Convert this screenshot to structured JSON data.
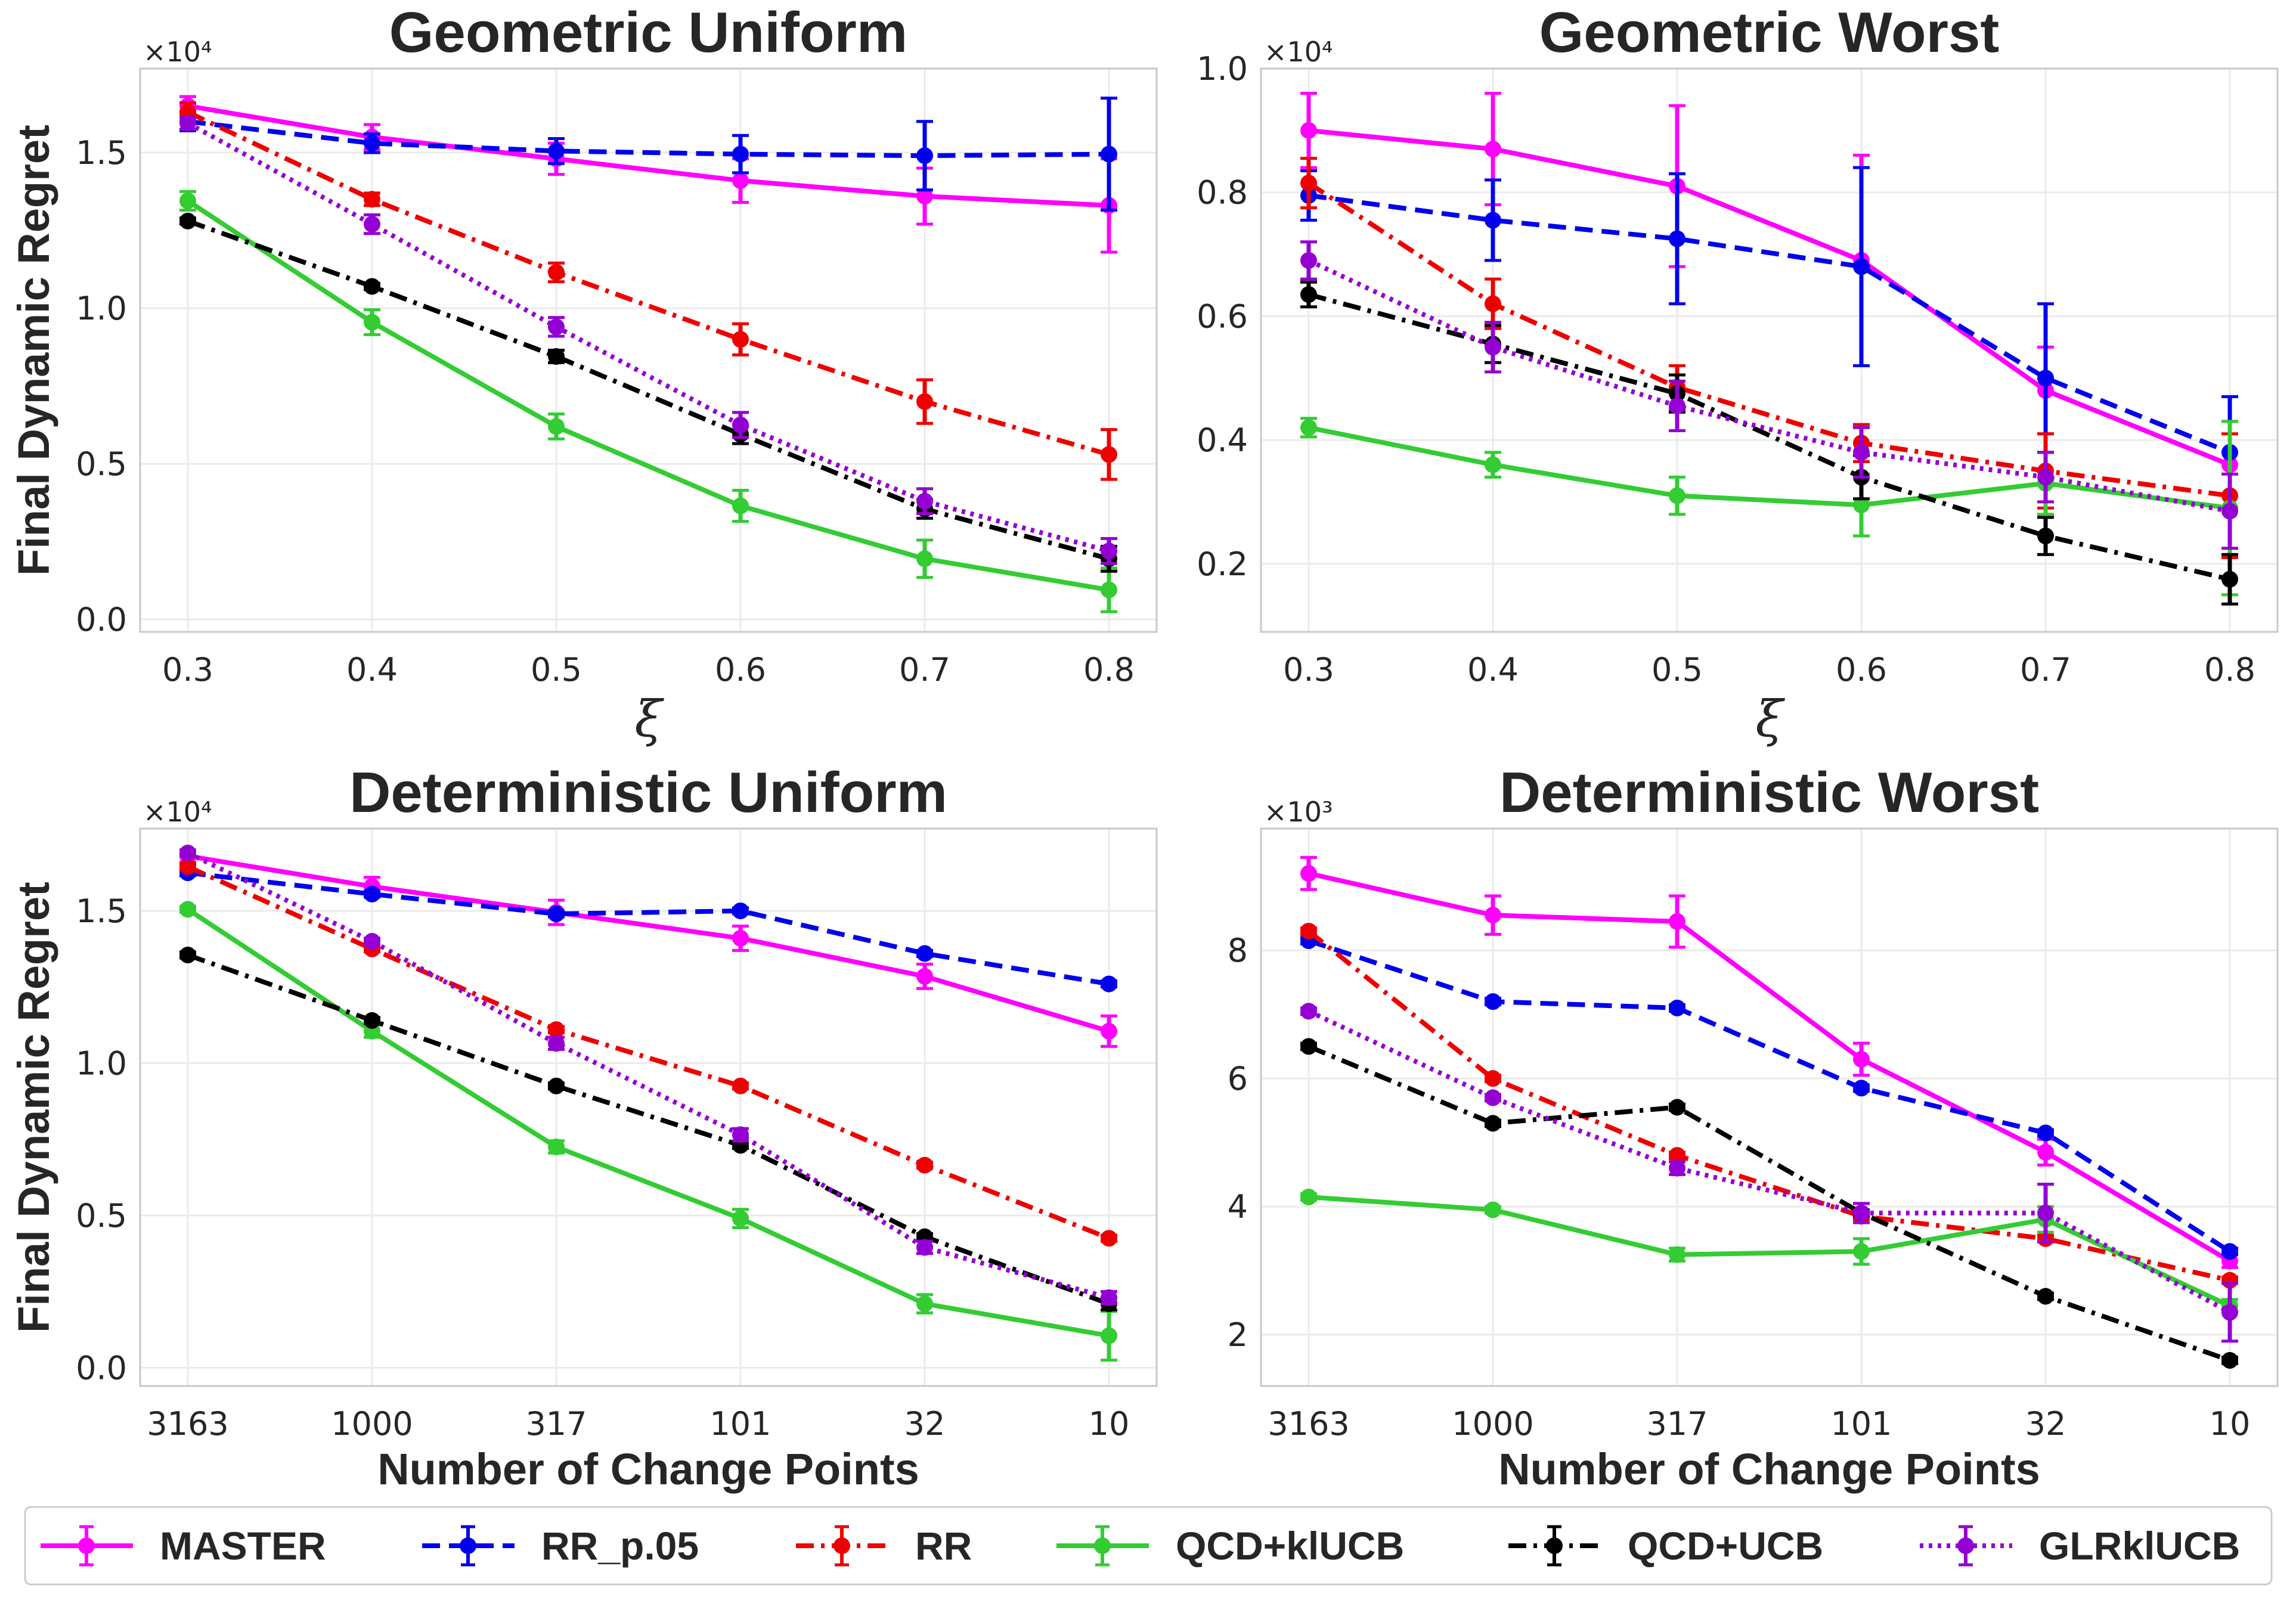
{
  "colors": {
    "MASTER": "#ff00ff",
    "RR_p.05": "#0000ee",
    "RR": "#ee0000",
    "QCD+klUCB": "#33cc33",
    "QCD+UCB": "#000000",
    "GLRklUCB": "#9400d3"
  },
  "legend": {
    "entries": [
      {
        "name": "MASTER",
        "style": "solid"
      },
      {
        "name": "RR_p.05",
        "style": "dashed"
      },
      {
        "name": "RR",
        "style": "dashdot"
      },
      {
        "name": "QCD+klUCB",
        "style": "solid"
      },
      {
        "name": "QCD+UCB",
        "style": "dashdot"
      },
      {
        "name": "GLRklUCB",
        "style": "dotted"
      }
    ]
  },
  "chart_data": [
    {
      "type": "line",
      "title": "Geometric Uniform",
      "xlabel": "ξ",
      "ylabel": "Final Dynamic Regret",
      "multiplier_text": "×10⁴",
      "x_ticks": [
        "0.3",
        "0.4",
        "0.5",
        "0.6",
        "0.7",
        "0.8"
      ],
      "ylim": [
        -0.04,
        1.77
      ],
      "y_ticks": [
        0,
        0.5,
        1.0,
        1.5
      ],
      "y_tick_labels": [
        "0.0",
        "0.5",
        "1.0",
        "1.5"
      ],
      "grid": true,
      "series": [
        {
          "name": "MASTER",
          "values": [
            1.65,
            1.55,
            1.48,
            1.41,
            1.36,
            1.33
          ],
          "err": [
            0.03,
            0.04,
            0.05,
            0.07,
            0.09,
            0.15
          ]
        },
        {
          "name": "RR_p.05",
          "values": [
            1.6,
            1.53,
            1.505,
            1.495,
            1.49,
            1.495
          ],
          "err": [
            0.03,
            0.03,
            0.04,
            0.06,
            0.11,
            0.18
          ]
        },
        {
          "name": "RR",
          "values": [
            1.63,
            1.35,
            1.115,
            0.9,
            0.7,
            0.53
          ],
          "err": [
            0.03,
            0.02,
            0.03,
            0.05,
            0.07,
            0.08
          ]
        },
        {
          "name": "QCD+klUCB",
          "values": [
            1.345,
            0.955,
            0.62,
            0.365,
            0.195,
            0.095
          ],
          "err": [
            0.03,
            0.04,
            0.04,
            0.05,
            0.06,
            0.07
          ]
        },
        {
          "name": "QCD+UCB",
          "values": [
            1.28,
            1.07,
            0.845,
            0.595,
            0.355,
            0.195
          ],
          "err": [
            0.01,
            0.01,
            0.02,
            0.03,
            0.03,
            0.04
          ]
        },
        {
          "name": "GLRklUCB",
          "values": [
            1.595,
            1.27,
            0.94,
            0.625,
            0.38,
            0.22
          ],
          "err": [
            0.02,
            0.03,
            0.03,
            0.04,
            0.04,
            0.04
          ]
        }
      ]
    },
    {
      "type": "line",
      "title": "Geometric Worst",
      "xlabel": "ξ",
      "ylabel": "",
      "multiplier_text": "×10⁴",
      "x_ticks": [
        "0.3",
        "0.4",
        "0.5",
        "0.6",
        "0.7",
        "0.8"
      ],
      "ylim": [
        0.09,
        1.0
      ],
      "y_ticks": [
        0.2,
        0.4,
        0.6,
        0.8,
        1.0
      ],
      "y_tick_labels": [
        "0.2",
        "0.4",
        "0.6",
        "0.8",
        "1.0"
      ],
      "grid": true,
      "series": [
        {
          "name": "MASTER",
          "values": [
            0.9,
            0.87,
            0.81,
            0.69,
            0.48,
            0.36
          ],
          "err": [
            0.06,
            0.09,
            0.13,
            0.17,
            0.07,
            0.07
          ]
        },
        {
          "name": "RR_p.05",
          "values": [
            0.795,
            0.755,
            0.725,
            0.68,
            0.5,
            0.38
          ],
          "err": [
            0.04,
            0.065,
            0.105,
            0.16,
            0.12,
            0.09
          ]
        },
        {
          "name": "RR",
          "values": [
            0.815,
            0.62,
            0.485,
            0.395,
            0.35,
            0.31
          ],
          "err": [
            0.04,
            0.04,
            0.035,
            0.03,
            0.06,
            0.1
          ]
        },
        {
          "name": "QCD+klUCB",
          "values": [
            0.42,
            0.36,
            0.31,
            0.295,
            0.33,
            0.29
          ],
          "err": [
            0.015,
            0.02,
            0.03,
            0.05,
            0.05,
            0.14
          ]
        },
        {
          "name": "QCD+UCB",
          "values": [
            0.635,
            0.555,
            0.475,
            0.34,
            0.245,
            0.175
          ],
          "err": [
            0.02,
            0.03,
            0.03,
            0.035,
            0.03,
            0.04
          ]
        },
        {
          "name": "GLRklUCB",
          "values": [
            0.69,
            0.55,
            0.455,
            0.38,
            0.34,
            0.285
          ],
          "err": [
            0.03,
            0.04,
            0.04,
            0.04,
            0.04,
            0.06
          ]
        }
      ]
    },
    {
      "type": "line",
      "title": "Deterministic Uniform",
      "xlabel": "Number of Change Points",
      "ylabel": "Final Dynamic Regret",
      "multiplier_text": "×10⁴",
      "x_ticks": [
        "3163",
        "1000",
        "317",
        "101",
        "32",
        "10"
      ],
      "ylim": [
        -0.06,
        1.77
      ],
      "y_ticks": [
        0,
        0.5,
        1.0,
        1.5
      ],
      "y_tick_labels": [
        "0.0",
        "0.5",
        "1.0",
        "1.5"
      ],
      "grid": true,
      "series": [
        {
          "name": "MASTER",
          "values": [
            1.68,
            1.58,
            1.495,
            1.41,
            1.285,
            1.105
          ],
          "err": [
            0.02,
            0.03,
            0.04,
            0.04,
            0.04,
            0.05
          ]
        },
        {
          "name": "RR_p.05",
          "values": [
            1.625,
            1.555,
            1.49,
            1.5,
            1.36,
            1.26
          ],
          "err": [
            0.01,
            0.01,
            0.01,
            0.01,
            0.01,
            0.01
          ]
        },
        {
          "name": "RR",
          "values": [
            1.645,
            1.375,
            1.11,
            0.925,
            0.665,
            0.425
          ],
          "err": [
            0.01,
            0.01,
            0.01,
            0.01,
            0.01,
            0.01
          ]
        },
        {
          "name": "QCD+klUCB",
          "values": [
            1.505,
            1.105,
            0.725,
            0.49,
            0.21,
            0.105
          ],
          "err": [
            0.01,
            0.02,
            0.02,
            0.03,
            0.03,
            0.08
          ]
        },
        {
          "name": "QCD+UCB",
          "values": [
            1.355,
            1.14,
            0.925,
            0.73,
            0.43,
            0.21
          ],
          "err": [
            0.01,
            0.01,
            0.01,
            0.01,
            0.01,
            0.02
          ]
        },
        {
          "name": "GLRklUCB",
          "values": [
            1.69,
            1.4,
            1.065,
            0.765,
            0.395,
            0.23
          ],
          "err": [
            0.01,
            0.01,
            0.02,
            0.02,
            0.02,
            0.02
          ]
        }
      ]
    },
    {
      "type": "line",
      "title": "Deterministic Worst",
      "xlabel": "Number of Change Points",
      "ylabel": "",
      "multiplier_text": "×10³",
      "x_ticks": [
        "3163",
        "1000",
        "317",
        "101",
        "32",
        "10"
      ],
      "ylim": [
        1.2,
        9.9
      ],
      "y_ticks": [
        2,
        4,
        6,
        8
      ],
      "y_tick_labels": [
        "2",
        "4",
        "6",
        "8"
      ],
      "grid": true,
      "series": [
        {
          "name": "MASTER",
          "values": [
            9.2,
            8.55,
            8.45,
            6.3,
            4.85,
            3.15
          ],
          "err": [
            0.25,
            0.3,
            0.4,
            0.25,
            0.2,
            0.1
          ]
        },
        {
          "name": "RR_p.05",
          "values": [
            8.15,
            7.2,
            7.1,
            5.85,
            5.15,
            3.3
          ],
          "err": [
            0.05,
            0.05,
            0.05,
            0.05,
            0.05,
            0.05
          ]
        },
        {
          "name": "RR",
          "values": [
            8.3,
            6.0,
            4.8,
            3.85,
            3.5,
            2.85
          ],
          "err": [
            0.05,
            0.05,
            0.05,
            0.05,
            0.05,
            0.05
          ]
        },
        {
          "name": "QCD+klUCB",
          "values": [
            4.15,
            3.95,
            3.25,
            3.3,
            3.8,
            2.45
          ],
          "err": [
            0.05,
            0.05,
            0.1,
            0.2,
            0.2,
            0.1
          ]
        },
        {
          "name": "QCD+UCB",
          "values": [
            6.5,
            5.3,
            5.55,
            3.9,
            2.6,
            1.6
          ],
          "err": [
            0.05,
            0.05,
            0.05,
            0.05,
            0.05,
            0.05
          ]
        },
        {
          "name": "GLRklUCB",
          "values": [
            7.05,
            5.7,
            4.6,
            3.9,
            3.9,
            2.35
          ],
          "err": [
            0.05,
            0.05,
            0.1,
            0.15,
            0.45,
            0.45
          ]
        }
      ]
    }
  ]
}
